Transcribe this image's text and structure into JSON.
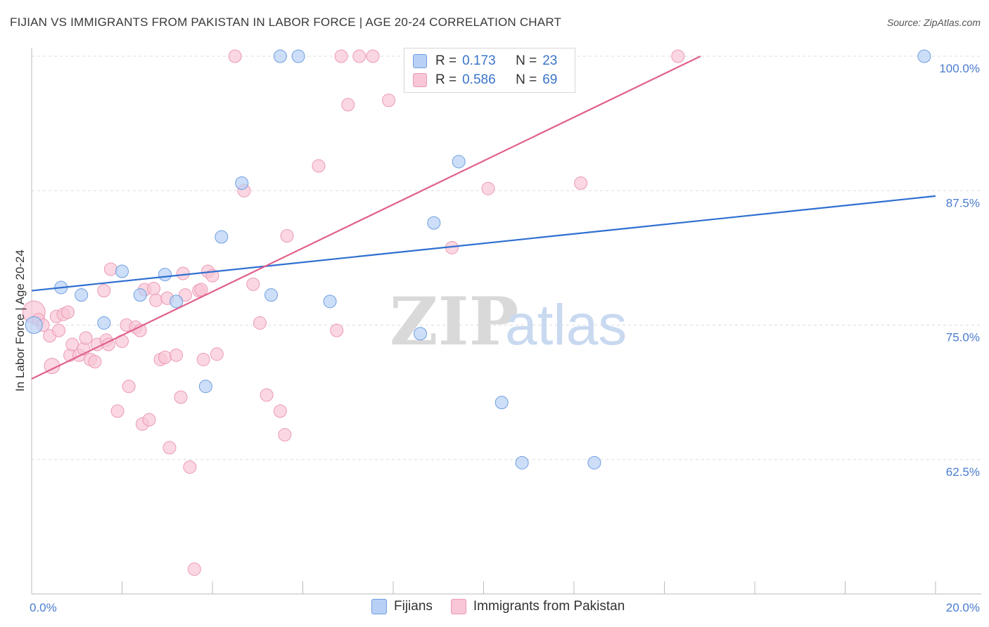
{
  "header": {
    "title": "FIJIAN VS IMMIGRANTS FROM PAKISTAN IN LABOR FORCE | AGE 20-24 CORRELATION CHART",
    "source": "Source: ZipAtlas.com"
  },
  "watermark": {
    "part1": "ZIP",
    "part2": "atlas"
  },
  "legend_top": [
    {
      "r_label": "R =",
      "r_value": "0.173",
      "n_label": "N =",
      "n_value": "23"
    },
    {
      "r_label": "R =",
      "r_value": "0.586",
      "n_label": "N =",
      "n_value": "69"
    }
  ],
  "legend_bottom": [
    {
      "label": "Fijians"
    },
    {
      "label": "Immigrants from Pakistan"
    }
  ],
  "colors": {
    "fijian_fill": "#b8d0f5",
    "fijian_stroke": "#6e9fe0",
    "fijian_line": "#2f6fd0",
    "pak_fill": "#f8c6d6",
    "pak_stroke": "#ec9ab5",
    "pak_line": "#e0608c",
    "axis_text": "#4a7cd0",
    "grid": "#dddddd"
  },
  "chart_data": {
    "type": "scatter",
    "title": "FIJIAN VS IMMIGRANTS FROM PAKISTAN IN LABOR FORCE | AGE 20-24 CORRELATION CHART",
    "xlabel": "",
    "ylabel": "In Labor Force | Age 20-24",
    "xlim": [
      0,
      20
    ],
    "ylim": [
      50,
      100
    ],
    "x_tick_labels": [
      {
        "value": 0,
        "label": "0.0%"
      },
      {
        "value": 20,
        "label": "20.0%"
      }
    ],
    "y_tick_labels": [
      {
        "value": 62.5,
        "label": "62.5%"
      },
      {
        "value": 75,
        "label": "75.0%"
      },
      {
        "value": 87.5,
        "label": "87.5%"
      },
      {
        "value": 100,
        "label": "100.0%"
      }
    ],
    "series": [
      {
        "name": "Fijians",
        "r": 0.173,
        "n": 23,
        "trend": {
          "x": [
            0,
            20
          ],
          "y": [
            78.2,
            87.0
          ]
        },
        "points": [
          [
            0.05,
            75.0,
            12
          ],
          [
            0.65,
            78.5,
            9
          ],
          [
            1.1,
            77.8,
            9
          ],
          [
            1.6,
            75.2,
            9
          ],
          [
            2.0,
            80.0,
            9
          ],
          [
            2.4,
            77.8,
            9
          ],
          [
            2.95,
            79.7,
            9
          ],
          [
            3.2,
            77.2,
            9
          ],
          [
            3.85,
            69.3,
            9
          ],
          [
            4.2,
            83.2,
            9
          ],
          [
            4.65,
            88.2,
            9
          ],
          [
            5.3,
            77.8,
            9
          ],
          [
            5.5,
            100.0,
            9
          ],
          [
            5.9,
            100.0,
            9
          ],
          [
            6.6,
            77.2,
            9
          ],
          [
            8.6,
            74.2,
            9
          ],
          [
            8.9,
            84.5,
            9
          ],
          [
            9.45,
            90.2,
            9
          ],
          [
            10.4,
            67.8,
            9
          ],
          [
            10.85,
            62.2,
            9
          ],
          [
            12.45,
            62.2,
            9
          ],
          [
            19.75,
            100.0,
            9
          ]
        ]
      },
      {
        "name": "Immigrants from Pakistan",
        "r": 0.586,
        "n": 69,
        "trend": {
          "x": [
            0,
            14.8
          ],
          "y": [
            70.0,
            100.0
          ]
        },
        "points": [
          [
            0.05,
            76.2,
            16
          ],
          [
            0.15,
            75.5,
            9
          ],
          [
            0.25,
            75.0,
            9
          ],
          [
            0.4,
            74.0,
            9
          ],
          [
            0.45,
            71.2,
            11
          ],
          [
            0.55,
            75.8,
            9
          ],
          [
            0.6,
            74.5,
            9
          ],
          [
            0.7,
            76.0,
            9
          ],
          [
            0.8,
            76.2,
            9
          ],
          [
            0.85,
            72.2,
            9
          ],
          [
            0.9,
            73.2,
            9
          ],
          [
            1.05,
            72.2,
            9
          ],
          [
            1.15,
            72.8,
            9
          ],
          [
            1.2,
            73.8,
            9
          ],
          [
            1.3,
            71.8,
            9
          ],
          [
            1.4,
            71.6,
            9
          ],
          [
            1.45,
            73.2,
            9
          ],
          [
            1.6,
            78.2,
            9
          ],
          [
            1.65,
            73.6,
            9
          ],
          [
            1.7,
            73.2,
            9
          ],
          [
            1.75,
            80.2,
            9
          ],
          [
            1.9,
            67.0,
            9
          ],
          [
            2.0,
            73.5,
            9
          ],
          [
            2.1,
            75.0,
            9
          ],
          [
            2.15,
            69.3,
            9
          ],
          [
            2.3,
            74.8,
            9
          ],
          [
            2.4,
            74.5,
            9
          ],
          [
            2.45,
            65.8,
            9
          ],
          [
            2.5,
            78.3,
            9
          ],
          [
            2.6,
            66.2,
            9
          ],
          [
            2.7,
            78.4,
            9
          ],
          [
            2.75,
            77.3,
            9
          ],
          [
            2.85,
            71.8,
            9
          ],
          [
            2.95,
            72.0,
            9
          ],
          [
            3.0,
            77.5,
            9
          ],
          [
            3.05,
            63.6,
            9
          ],
          [
            3.2,
            72.2,
            9
          ],
          [
            3.3,
            68.3,
            9
          ],
          [
            3.35,
            79.8,
            9
          ],
          [
            3.4,
            77.8,
            9
          ],
          [
            3.5,
            61.8,
            9
          ],
          [
            3.6,
            52.3,
            9
          ],
          [
            3.7,
            78.2,
            9
          ],
          [
            3.75,
            78.3,
            9
          ],
          [
            3.8,
            71.8,
            9
          ],
          [
            3.9,
            80.0,
            9
          ],
          [
            4.0,
            79.6,
            9
          ],
          [
            4.1,
            72.3,
            9
          ],
          [
            4.5,
            100.0,
            9
          ],
          [
            4.7,
            87.5,
            9
          ],
          [
            4.9,
            78.8,
            9
          ],
          [
            5.05,
            75.2,
            9
          ],
          [
            5.2,
            68.5,
            9
          ],
          [
            5.5,
            67.0,
            9
          ],
          [
            5.6,
            64.8,
            9
          ],
          [
            5.65,
            83.3,
            9
          ],
          [
            6.35,
            89.8,
            9
          ],
          [
            6.75,
            74.5,
            9
          ],
          [
            6.85,
            100.0,
            9
          ],
          [
            7.0,
            95.5,
            9
          ],
          [
            7.25,
            100.0,
            9
          ],
          [
            7.55,
            100.0,
            9
          ],
          [
            7.9,
            95.9,
            9
          ],
          [
            9.3,
            82.2,
            9
          ],
          [
            10.1,
            87.7,
            9
          ],
          [
            12.15,
            88.2,
            9
          ],
          [
            14.3,
            100.0,
            9
          ]
        ]
      }
    ]
  }
}
